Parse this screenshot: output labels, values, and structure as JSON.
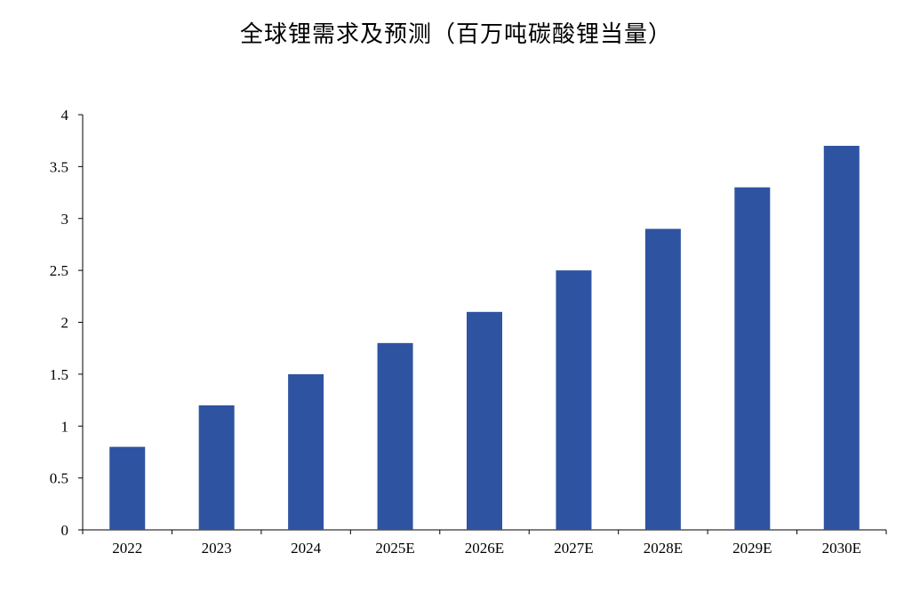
{
  "chart_data": {
    "type": "bar",
    "title": "全球锂需求及预测（百万吨碳酸锂当量）",
    "categories": [
      "2022",
      "2023",
      "2024",
      "2025E",
      "2026E",
      "2027E",
      "2028E",
      "2029E",
      "2030E"
    ],
    "values": [
      0.8,
      1.2,
      1.5,
      1.8,
      2.1,
      2.5,
      2.9,
      3.3,
      3.7
    ],
    "xlabel": "",
    "ylabel": "",
    "ylim": [
      0,
      4
    ],
    "yticks": [
      "0",
      "0.5",
      "1",
      "1.5",
      "2",
      "2.5",
      "3",
      "3.5",
      "4"
    ],
    "grid": false,
    "legend": "none",
    "bar_color": "#2e54a1"
  }
}
